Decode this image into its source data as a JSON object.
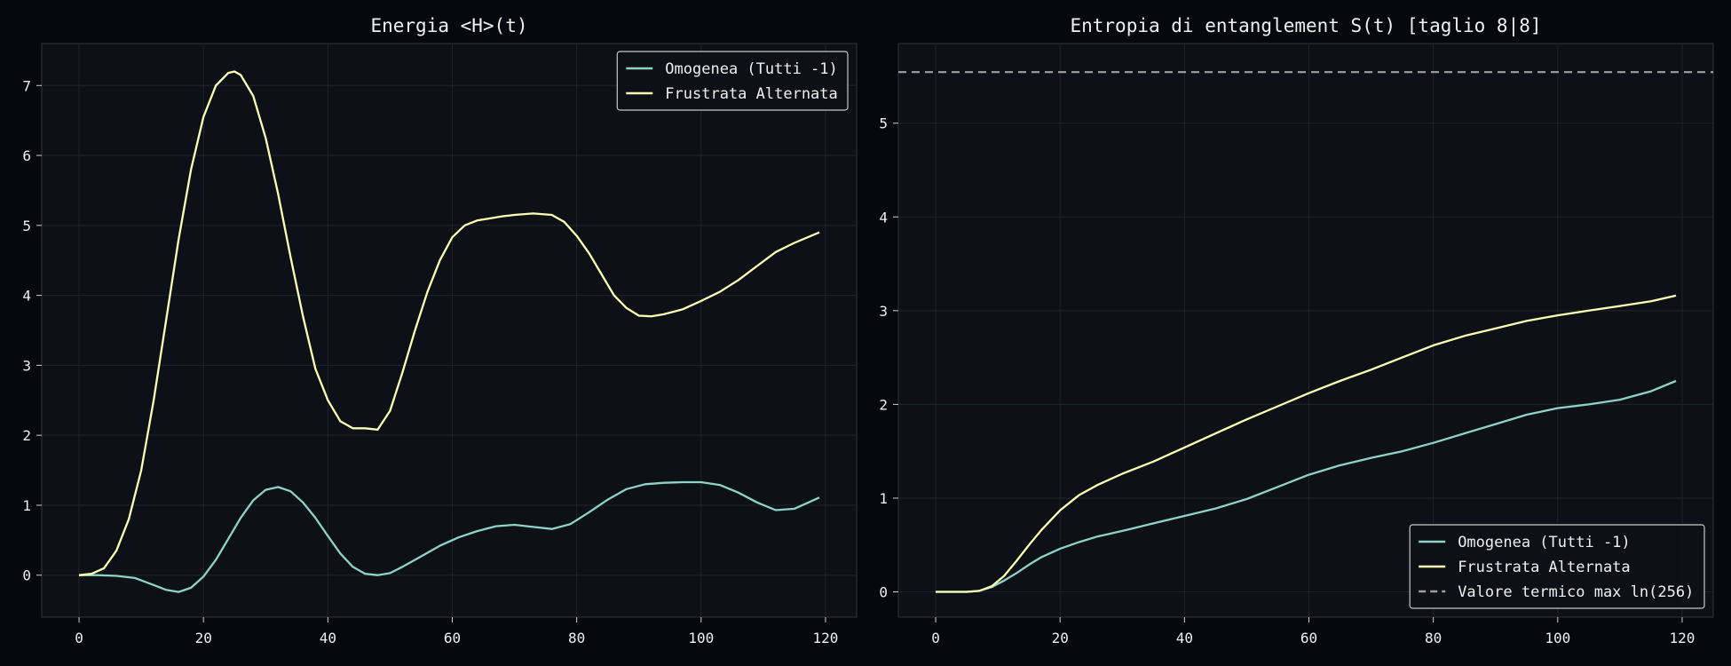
{
  "figure": {
    "background": "#05080d",
    "panel_background": "#0d1117",
    "grid_color": "#1f242c",
    "frame_color": "#2f353d"
  },
  "chart_data": [
    {
      "type": "line",
      "title": "Energia <H>(t)",
      "xlabel": "",
      "ylabel": "",
      "xlim": [
        -6,
        125
      ],
      "ylim": [
        -0.6,
        7.6
      ],
      "xticks": [
        0,
        20,
        40,
        60,
        80,
        100,
        120
      ],
      "yticks": [
        0,
        1,
        2,
        3,
        4,
        5,
        6,
        7
      ],
      "grid": true,
      "legend_position": "top-right",
      "series": [
        {
          "name": "Omogenea (Tutti -1)",
          "color": "#8dd3c7",
          "style": "solid",
          "x": [
            0,
            3,
            6,
            9,
            12,
            14,
            16,
            18,
            20,
            22,
            24,
            26,
            28,
            30,
            32,
            34,
            36,
            38,
            40,
            42,
            44,
            46,
            48,
            50,
            52,
            55,
            58,
            61,
            64,
            67,
            70,
            73,
            76,
            79,
            82,
            85,
            88,
            91,
            94,
            97,
            100,
            103,
            106,
            109,
            112,
            115,
            119
          ],
          "y": [
            0.0,
            0.0,
            -0.01,
            -0.04,
            -0.14,
            -0.21,
            -0.24,
            -0.18,
            -0.02,
            0.22,
            0.52,
            0.82,
            1.07,
            1.22,
            1.26,
            1.2,
            1.04,
            0.82,
            0.56,
            0.31,
            0.12,
            0.02,
            0.0,
            0.03,
            0.12,
            0.27,
            0.42,
            0.54,
            0.63,
            0.7,
            0.72,
            0.69,
            0.66,
            0.73,
            0.9,
            1.08,
            1.23,
            1.3,
            1.32,
            1.33,
            1.33,
            1.29,
            1.18,
            1.04,
            0.93,
            0.95,
            1.11
          ]
        },
        {
          "name": "Frustrata Alternata",
          "color": "#ffffb3",
          "style": "solid",
          "x": [
            0,
            2,
            4,
            6,
            8,
            10,
            12,
            14,
            16,
            18,
            20,
            22,
            24,
            25,
            26,
            28,
            30,
            32,
            34,
            36,
            38,
            40,
            42,
            44,
            46,
            48,
            50,
            52,
            54,
            56,
            58,
            60,
            62,
            64,
            66,
            68,
            70,
            73,
            76,
            78,
            80,
            82,
            84,
            86,
            88,
            90,
            92,
            94,
            97,
            100,
            103,
            106,
            109,
            112,
            115,
            119
          ],
          "y": [
            0.0,
            0.02,
            0.1,
            0.35,
            0.8,
            1.5,
            2.5,
            3.65,
            4.8,
            5.8,
            6.55,
            7.0,
            7.18,
            7.2,
            7.15,
            6.85,
            6.25,
            5.45,
            4.55,
            3.7,
            2.95,
            2.5,
            2.2,
            2.1,
            2.1,
            2.08,
            2.35,
            2.9,
            3.5,
            4.05,
            4.5,
            4.83,
            5.0,
            5.07,
            5.1,
            5.13,
            5.15,
            5.17,
            5.15,
            5.05,
            4.85,
            4.6,
            4.3,
            4.0,
            3.82,
            3.71,
            3.7,
            3.73,
            3.8,
            3.92,
            4.05,
            4.22,
            4.42,
            4.62,
            4.75,
            4.9
          ]
        }
      ]
    },
    {
      "type": "line",
      "title": "Entropia di entanglement S(t) [taglio 8|8]",
      "xlabel": "",
      "ylabel": "",
      "xlim": [
        -6,
        125
      ],
      "ylim": [
        -0.27,
        5.85
      ],
      "xticks": [
        0,
        20,
        40,
        60,
        80,
        100,
        120
      ],
      "yticks": [
        0,
        1,
        2,
        3,
        4,
        5
      ],
      "grid": true,
      "legend_position": "bottom-right",
      "series": [
        {
          "name": "Omogenea (Tutti -1)",
          "color": "#8dd3c7",
          "style": "solid",
          "x": [
            0,
            3,
            5,
            7,
            9,
            11,
            13,
            15,
            17,
            20,
            23,
            26,
            30,
            35,
            40,
            45,
            50,
            55,
            60,
            65,
            70,
            75,
            80,
            85,
            90,
            95,
            100,
            105,
            110,
            115,
            119
          ],
          "y": [
            0.0,
            0.0,
            0.0,
            0.01,
            0.05,
            0.12,
            0.2,
            0.29,
            0.37,
            0.46,
            0.53,
            0.59,
            0.65,
            0.73,
            0.81,
            0.89,
            0.99,
            1.12,
            1.25,
            1.35,
            1.43,
            1.5,
            1.59,
            1.69,
            1.79,
            1.89,
            1.96,
            2.0,
            2.05,
            2.14,
            2.25
          ]
        },
        {
          "name": "Frustrata Alternata",
          "color": "#ffffb3",
          "style": "solid",
          "x": [
            0,
            3,
            5,
            7,
            9,
            11,
            13,
            15,
            17,
            20,
            23,
            26,
            30,
            35,
            40,
            45,
            50,
            55,
            60,
            65,
            70,
            75,
            80,
            85,
            90,
            95,
            100,
            105,
            110,
            115,
            119
          ],
          "y": [
            0.0,
            0.0,
            0.0,
            0.01,
            0.06,
            0.17,
            0.33,
            0.5,
            0.66,
            0.87,
            1.03,
            1.14,
            1.26,
            1.39,
            1.54,
            1.69,
            1.84,
            1.98,
            2.12,
            2.25,
            2.37,
            2.5,
            2.63,
            2.73,
            2.81,
            2.89,
            2.95,
            3.0,
            3.05,
            3.1,
            3.16
          ]
        },
        {
          "name": "Valore termico max ln(256)",
          "color": "#a0a0a0",
          "style": "dashed",
          "hline": 5.545
        }
      ]
    }
  ]
}
